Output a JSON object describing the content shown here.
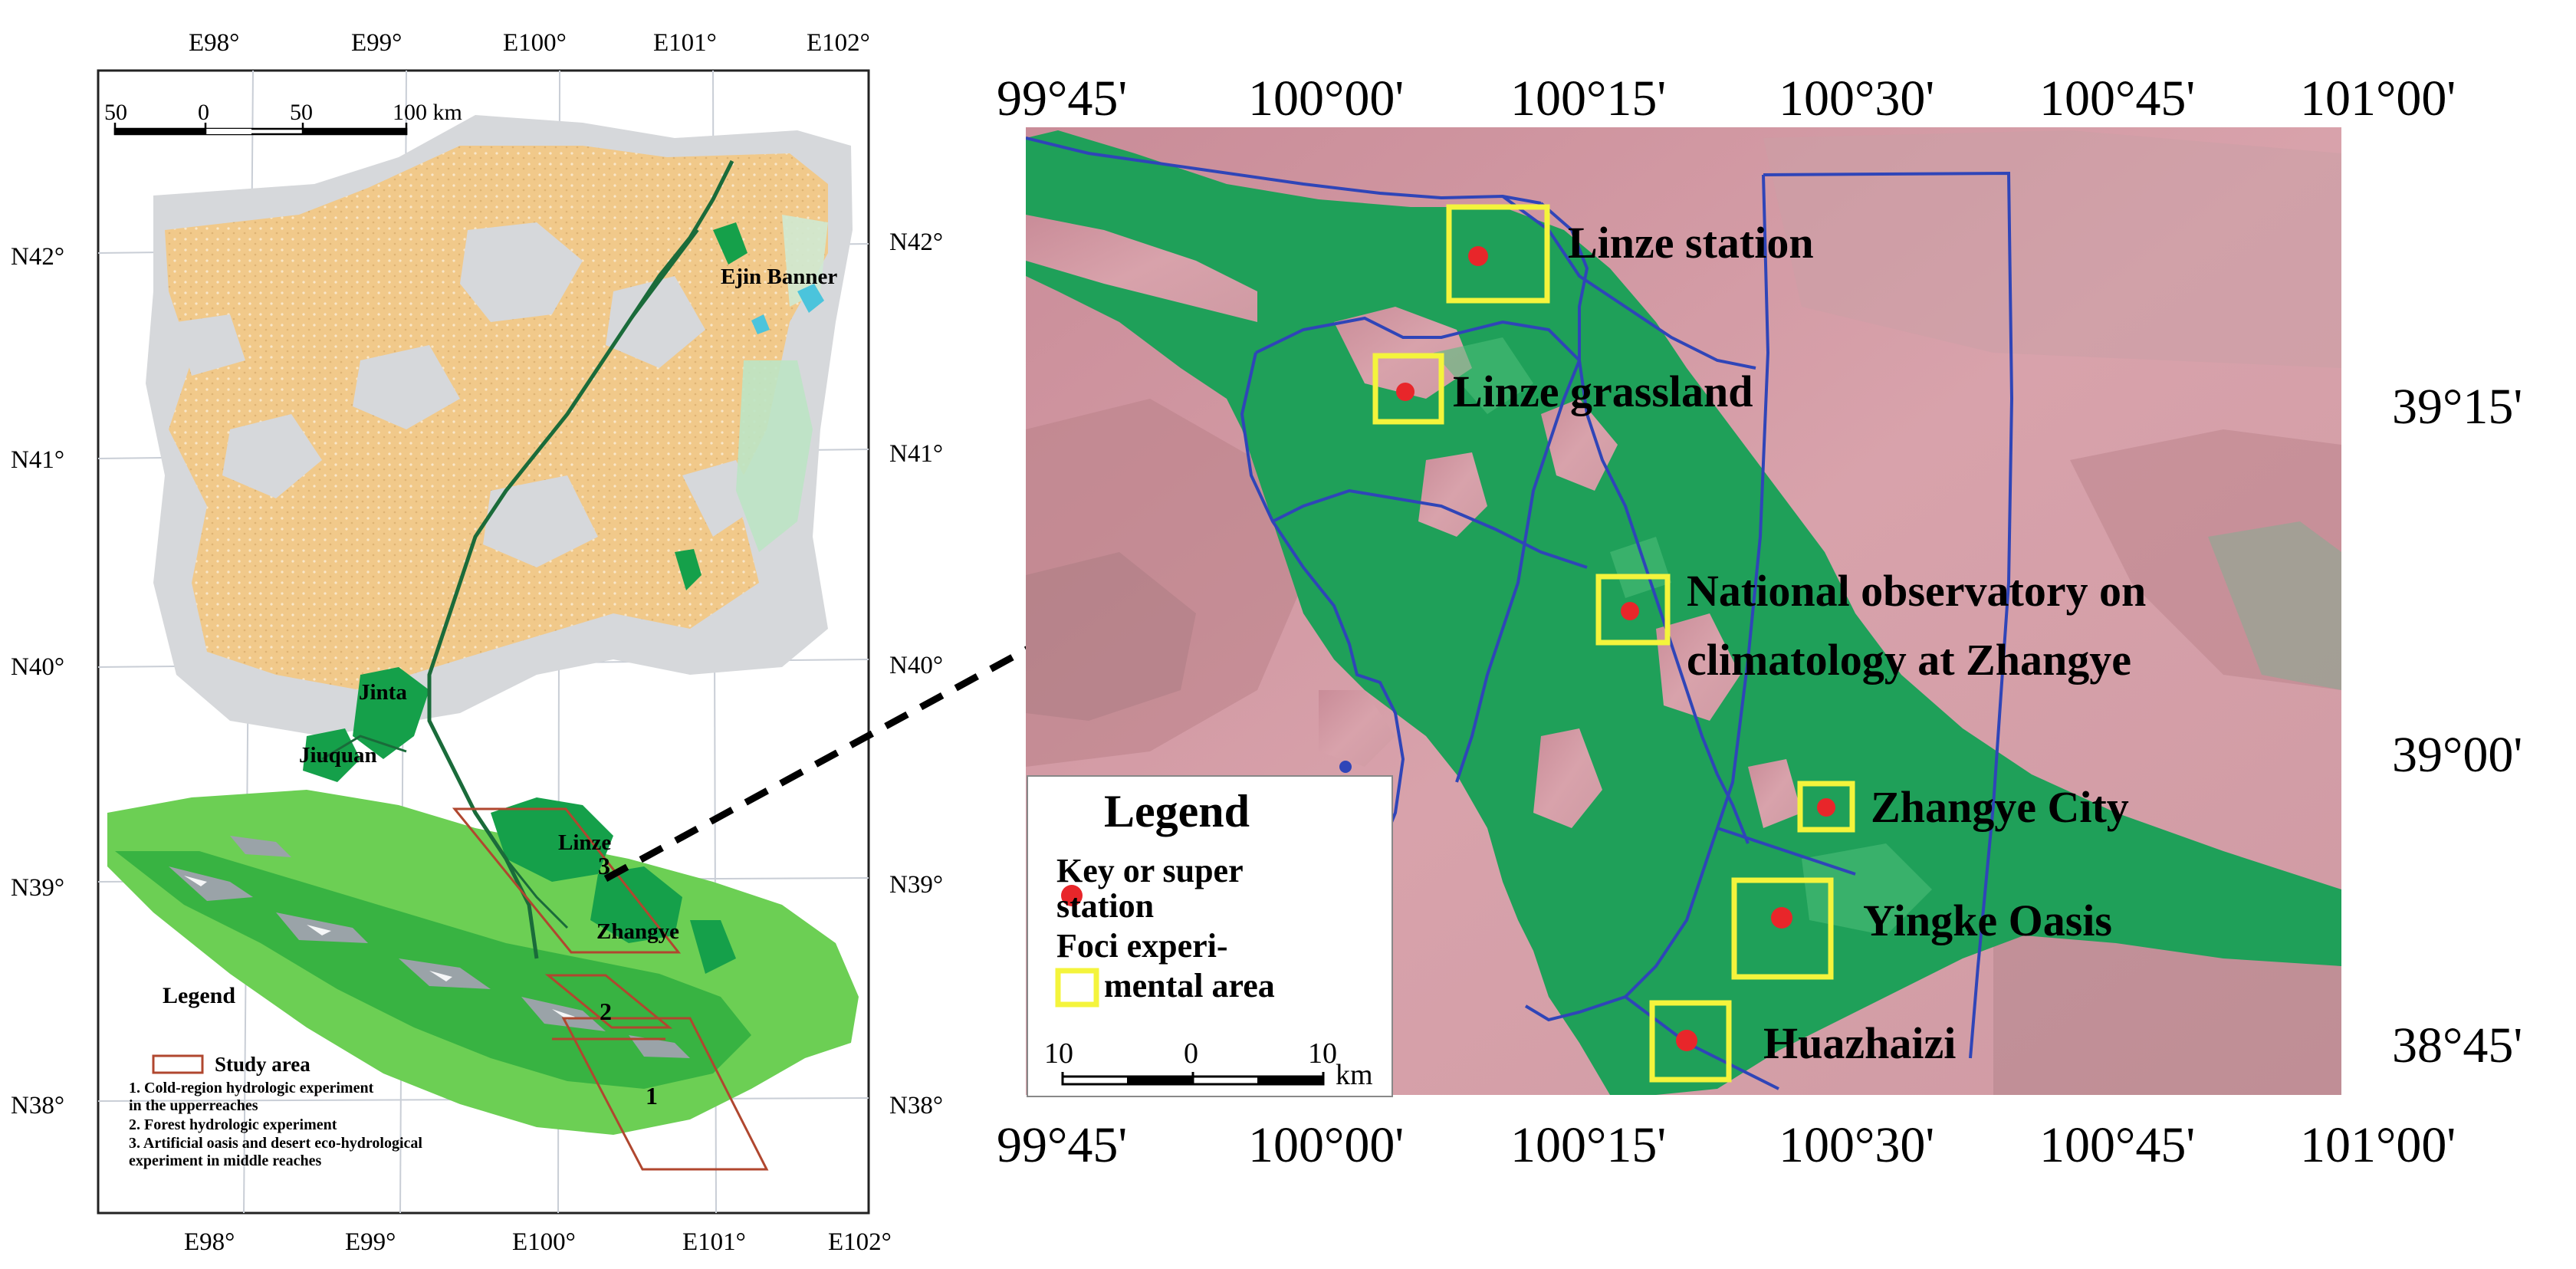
{
  "left_map": {
    "top_longitude_labels": [
      "E98°",
      "E99°",
      "E100°",
      "E101°",
      "E102°"
    ],
    "bottom_longitude_labels": [
      "E98°",
      "E99°",
      "E100°",
      "E101°",
      "E102°"
    ],
    "left_latitude_labels": [
      "N42°",
      "N41°",
      "N40°",
      "N39°",
      "N38°"
    ],
    "right_latitude_labels": [
      "N42°",
      "N41°",
      "N40°",
      "N39°",
      "N38°"
    ],
    "scale_bar": {
      "ticks": [
        "50",
        "0",
        "50",
        "100 km"
      ]
    },
    "places": [
      "Ejin Banner",
      "Jinta",
      "Jiuquan",
      "Linze",
      "Zhangye"
    ],
    "study_area_numbers": [
      "1",
      "2",
      "3"
    ],
    "legend": {
      "title": "Legend",
      "study_area_label": "Study area",
      "items": [
        "1. Cold-region hydrologic experiment",
        "in the upperreaches",
        "2. Forest hydrologic experiment",
        "3. Artificial oasis and desert eco-hydrological",
        "experiment in middle reaches"
      ]
    },
    "colors": {
      "desert": "#f1c98a",
      "gobi": "#d6d8db",
      "grass": "#6ccf54",
      "oasis": "#15a04a",
      "river": "#1a6b3a",
      "study_area_outline": "#b0472f",
      "lake": "#4bc4dc"
    }
  },
  "right_map": {
    "top_longitude_labels": [
      "99°45'",
      "100°00'",
      "100°15'",
      "100°30'",
      "100°45'",
      "101°00'"
    ],
    "bottom_longitude_labels": [
      "99°45'",
      "100°00'",
      "100°15'",
      "100°30'",
      "100°45'",
      "101°00'"
    ],
    "right_latitude_labels": [
      "39°15'",
      "39°00'",
      "38°45'"
    ],
    "sites": [
      {
        "label_lines": [
          "Linze station"
        ]
      },
      {
        "label_lines": [
          "Linze grassland"
        ]
      },
      {
        "label_lines": [
          "National observatory on",
          "climatology at Zhangye"
        ]
      },
      {
        "label_lines": [
          "Zhangye City"
        ]
      },
      {
        "label_lines": [
          "Yingke Oasis"
        ]
      },
      {
        "label_lines": [
          "Huazhaizi"
        ]
      }
    ],
    "legend": {
      "title": "Legend",
      "key_station_lines": [
        "Key or super",
        "station"
      ],
      "foci_area_lines": [
        "Foci experi-",
        "mental area"
      ],
      "scale_ticks": [
        "10",
        "0",
        "10"
      ],
      "scale_unit": "km"
    },
    "colors": {
      "background": "#d49aa4",
      "vegetation": "#1fa059",
      "boundary": "#2f45b8",
      "site_box": "#f4f43c",
      "site_dot": "#e8262a"
    }
  }
}
